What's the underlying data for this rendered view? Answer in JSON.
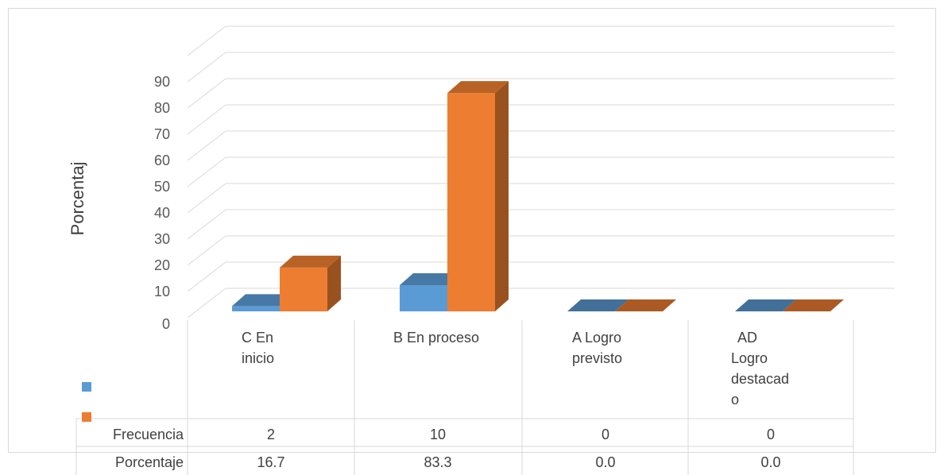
{
  "chart_data": {
    "type": "bar",
    "title": "",
    "ylabel": "Porcentaj",
    "xlabel": "",
    "ylim": [
      0,
      90
    ],
    "yticks": [
      "0",
      "10",
      "20",
      "30",
      "40",
      "50",
      "60",
      "70",
      "80",
      "90"
    ],
    "grid": true,
    "style": "3d-clustered-column-with-data-table",
    "categories": [
      "C En\ninicio",
      "B En proceso",
      "A Logro\nprevisto",
      "AD\nLogro\ndestacad\no"
    ],
    "series": [
      {
        "name": "Frecuencia",
        "color": "#5b9bd5",
        "values": [
          2,
          10,
          0,
          0
        ],
        "table_values": [
          "2",
          "10",
          "0",
          "0"
        ]
      },
      {
        "name": "Porcentaje",
        "color": "#ed7d31",
        "values": [
          16.7,
          83.3,
          0.0,
          0.0
        ],
        "table_values": [
          "16.7",
          "83.3",
          "0.0",
          "0.0"
        ]
      }
    ]
  }
}
